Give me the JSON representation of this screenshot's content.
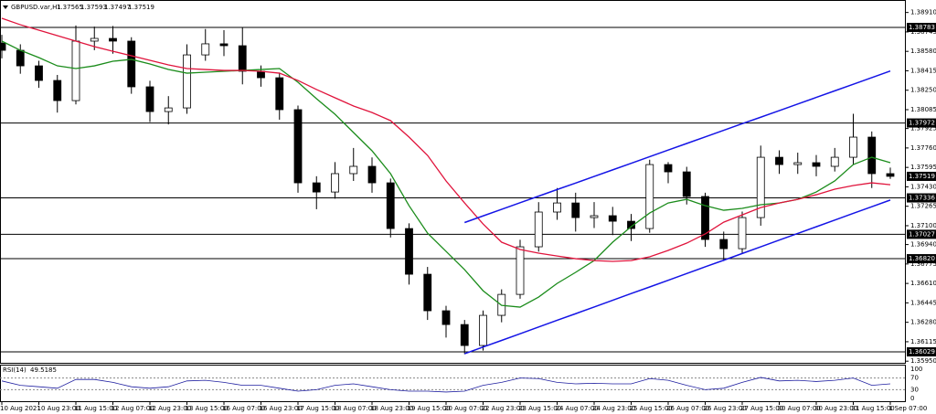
{
  "header": {
    "symbol": "GBPUSD.var,H1",
    "open": 1.37565,
    "high": 1.37593,
    "low": 1.37497,
    "close": 1.37519
  },
  "chart_data": [
    {
      "type": "candlestick",
      "categories": [
        "10 Aug 2021",
        null,
        "10 Aug 23:00",
        null,
        "11 Aug 15:00",
        null,
        "12 Aug 07:00",
        null,
        "12 Aug 23:00",
        null,
        "13 Aug 15:00",
        null,
        "16 Aug 07:00",
        null,
        "16 Aug 23:00",
        null,
        "17 Aug 15:00",
        null,
        "18 Aug 07:00",
        null,
        "18 Aug 23:00",
        null,
        "19 Aug 15:00",
        null,
        "20 Aug 07:00",
        null,
        "22 Aug 23:00",
        null,
        "23 Aug 15:00",
        null,
        "24 Aug 07:00",
        null,
        "24 Aug 23:00",
        null,
        "25 Aug 15:00",
        null,
        "26 Aug 07:00",
        null,
        "26 Aug 23:00",
        null,
        "27 Aug 15:00",
        null,
        "30 Aug 07:00",
        null,
        "30 Aug 23:00",
        null,
        "31 Aug 15:00",
        null,
        "1 Sep 07:00"
      ],
      "ohlc": {
        "open": [
          1.3865,
          1.38589,
          1.38457,
          1.38333,
          1.38162,
          1.38667,
          1.3869,
          1.38667,
          1.38279,
          1.38069,
          1.381,
          1.3855,
          1.38644,
          1.38628,
          1.38411,
          1.38356,
          1.38085,
          1.37464,
          1.37386,
          1.37542,
          1.37604,
          1.37464,
          1.37076,
          1.36688,
          1.36378,
          1.36261,
          1.36083,
          1.36339,
          1.36517,
          1.36921,
          1.37216,
          1.37293,
          1.37169,
          1.37185,
          1.37138,
          1.37076,
          1.37619,
          1.37557,
          1.37348,
          1.36983,
          1.36905,
          1.37169,
          1.37681,
          1.37619,
          1.37635,
          1.37604,
          1.37681,
          1.37852,
          1.37542
        ],
        "high": [
          1.3872,
          1.3864,
          1.385,
          1.3838,
          1.388,
          1.3879,
          1.38795,
          1.387,
          1.3833,
          1.382,
          1.3864,
          1.3877,
          1.3876,
          1.3878,
          1.3846,
          1.384,
          1.3812,
          1.3752,
          1.3764,
          1.3776,
          1.3768,
          1.375,
          1.3712,
          1.3675,
          1.3642,
          1.363,
          1.3638,
          1.3656,
          1.3698,
          1.373,
          1.3742,
          1.3738,
          1.373,
          1.3726,
          1.372,
          1.3766,
          1.3764,
          1.376,
          1.3738,
          1.3705,
          1.3722,
          1.3778,
          1.3774,
          1.3772,
          1.377,
          1.3776,
          1.3805,
          1.379,
          1.37593
        ],
        "low": [
          1.3852,
          1.3839,
          1.3827,
          1.3806,
          1.3813,
          1.3859,
          1.3856,
          1.3822,
          1.3798,
          1.3796,
          1.3805,
          1.385,
          1.3854,
          1.383,
          1.3828,
          1.38,
          1.3738,
          1.3724,
          1.3733,
          1.3748,
          1.3738,
          1.37,
          1.366,
          1.363,
          1.3615,
          1.3601,
          1.3604,
          1.3628,
          1.3648,
          1.3688,
          1.3715,
          1.3705,
          1.3708,
          1.3702,
          1.3697,
          1.3704,
          1.3746,
          1.3728,
          1.3692,
          1.368,
          1.3686,
          1.371,
          1.3754,
          1.3754,
          1.3752,
          1.3756,
          1.3762,
          1.3742,
          1.37497
        ],
        "close": [
          1.38589,
          1.38457,
          1.38333,
          1.38162,
          1.38667,
          1.3869,
          1.38667,
          1.38279,
          1.38069,
          1.381,
          1.3855,
          1.38644,
          1.38628,
          1.38411,
          1.38356,
          1.38085,
          1.37464,
          1.37386,
          1.37542,
          1.37604,
          1.37464,
          1.37076,
          1.36688,
          1.36378,
          1.36261,
          1.36083,
          1.36339,
          1.36517,
          1.36921,
          1.37216,
          1.37293,
          1.37169,
          1.37185,
          1.37138,
          1.37076,
          1.37619,
          1.37557,
          1.37348,
          1.36983,
          1.36905,
          1.37169,
          1.37681,
          1.37619,
          1.37635,
          1.37604,
          1.37681,
          1.37852,
          1.37542,
          1.37519
        ]
      },
      "series": [
        {
          "color": "#1b8c1b",
          "values": [
            1.38667,
            1.38589,
            1.38527,
            1.38457,
            1.38434,
            1.38457,
            1.38496,
            1.38512,
            1.38473,
            1.38426,
            1.38395,
            1.38403,
            1.38411,
            1.38418,
            1.38426,
            1.38434,
            1.38318,
            1.38178,
            1.38046,
            1.37891,
            1.37736,
            1.37542,
            1.3727,
            1.37037,
            1.36882,
            1.36727,
            1.36548,
            1.36424,
            1.36409,
            1.36494,
            1.3661,
            1.36704,
            1.36804,
            1.3696,
            1.37092,
            1.37208,
            1.37293,
            1.37324,
            1.3727,
            1.37231,
            1.37247,
            1.37278,
            1.37293,
            1.37324,
            1.37386,
            1.3748,
            1.37619,
            1.37681,
            1.37635
          ]
        },
        {
          "color": "#e0143c",
          "values": [
            1.38861,
            1.38806,
            1.3876,
            1.38713,
            1.38667,
            1.3862,
            1.38581,
            1.38543,
            1.38504,
            1.38465,
            1.38434,
            1.38426,
            1.38418,
            1.38418,
            1.38411,
            1.38395,
            1.38333,
            1.38256,
            1.38186,
            1.38116,
            1.38061,
            1.37992,
            1.37852,
            1.37697,
            1.3748,
            1.37293,
            1.37115,
            1.3696,
            1.36898,
            1.36867,
            1.36843,
            1.3682,
            1.36804,
            1.36797,
            1.36804,
            1.36836,
            1.3689,
            1.36952,
            1.3703,
            1.3713,
            1.37192,
            1.37254,
            1.37293,
            1.37324,
            1.37363,
            1.3741,
            1.37441,
            1.37464,
            1.37448
          ]
        },
        {
          "color": "#1414e6",
          "values": [
            null,
            null,
            null,
            null,
            null,
            null,
            null,
            null,
            null,
            null,
            null,
            null,
            null,
            null,
            null,
            null,
            null,
            null,
            null,
            null,
            null,
            null,
            null,
            null,
            null,
            1.37127,
            1.37183,
            1.37239,
            1.37295,
            1.37351,
            1.37407,
            1.37462,
            1.37518,
            1.37574,
            1.3763,
            1.37686,
            1.37742,
            1.37798,
            1.37854,
            1.3791,
            1.37966,
            1.38021,
            1.38077,
            1.38133,
            1.38189,
            1.38245,
            1.38301,
            1.38357,
            1.38413
          ]
        },
        {
          "color": "#1414e6",
          "values": [
            null,
            null,
            null,
            null,
            null,
            null,
            null,
            null,
            null,
            null,
            null,
            null,
            null,
            null,
            null,
            null,
            null,
            null,
            null,
            null,
            null,
            null,
            null,
            null,
            null,
            1.36013,
            1.3607,
            1.36126,
            1.36183,
            1.3624,
            1.36297,
            1.36353,
            1.3641,
            1.36467,
            1.36524,
            1.3658,
            1.36637,
            1.36694,
            1.36751,
            1.36807,
            1.36864,
            1.36921,
            1.36978,
            1.37034,
            1.37091,
            1.37148,
            1.37205,
            1.37261,
            1.37318
          ]
        }
      ],
      "levels": [
        1.38783,
        1.37972,
        1.37336,
        1.37027,
        {
          "value": 1.3682,
          "label": "1.36820"
        },
        1.36029
      ],
      "ylim": [
        1.35936,
        1.39016
      ],
      "yticks": [
        {
          "value": 1.3891,
          "label": "1.38910"
        },
        1.38745,
        {
          "value": 1.3858,
          "label": "1.38580"
        },
        1.38415,
        {
          "value": 1.3825,
          "label": "1.38250"
        },
        1.38085,
        1.37925,
        {
          "value": 1.3776,
          "label": "1.37760"
        },
        1.37595,
        {
          "value": 1.3743,
          "label": "1.37430"
        },
        1.37265,
        {
          "value": 1.371,
          "label": "1.37100"
        },
        {
          "value": 1.3694,
          "label": "1.36940"
        },
        1.36775,
        {
          "value": 1.3661,
          "label": "1.36610"
        },
        1.36445,
        {
          "value": 1.3628,
          "label": "1.36280"
        },
        1.36115,
        {
          "value": 1.3595,
          "label": "1.35950"
        }
      ],
      "grid": false
    },
    {
      "type": "line",
      "title": "RSI(14)",
      "last_value": 49.5185,
      "color": "#1e1ea0",
      "values": [
        60,
        45,
        40,
        35,
        65,
        65,
        55,
        40,
        35,
        40,
        60,
        62,
        55,
        45,
        45,
        35,
        25,
        30,
        45,
        50,
        40,
        30,
        25,
        25,
        22,
        25,
        45,
        55,
        70,
        68,
        55,
        50,
        52,
        50,
        50,
        68,
        62,
        45,
        30,
        35,
        55,
        72,
        60,
        62,
        58,
        62,
        70,
        45,
        50
      ],
      "ylim": [
        0,
        100
      ],
      "yticks": [
        0,
        30,
        70,
        100
      ],
      "levels": [
        30,
        70
      ]
    }
  ]
}
